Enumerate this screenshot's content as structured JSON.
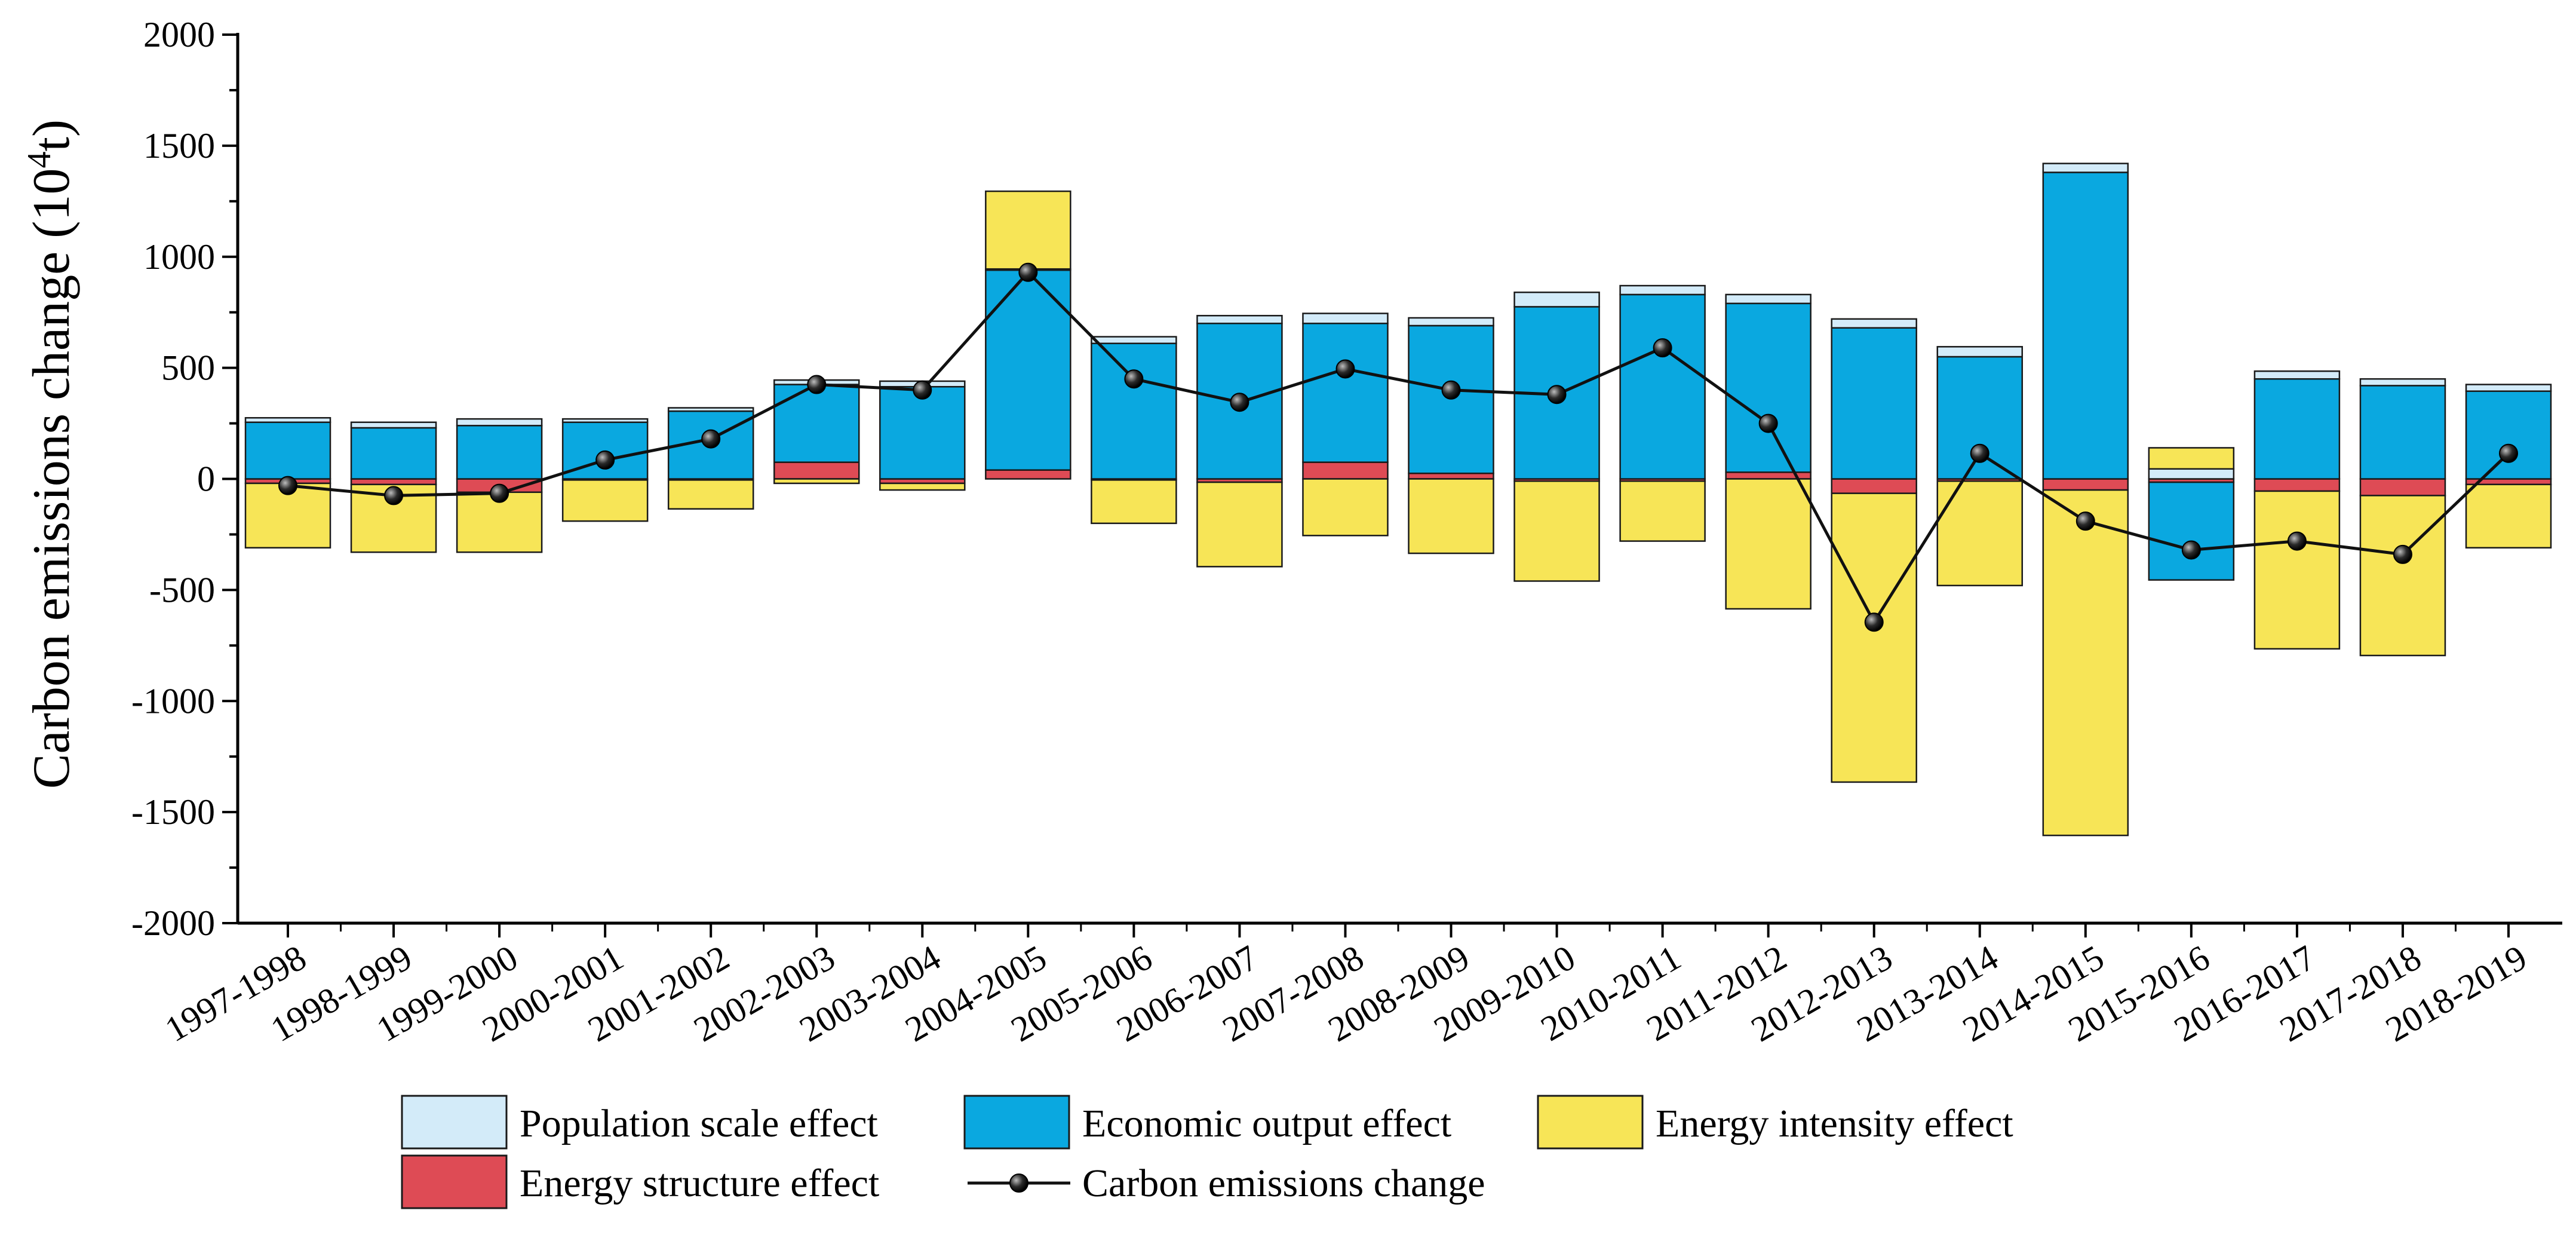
{
  "chart_data": {
    "type": "bar",
    "stacked": true,
    "categories": [
      "1997-1998",
      "1998-1999",
      "1999-2000",
      "2000-2001",
      "2001-2002",
      "2002-2003",
      "2003-2004",
      "2004-2005",
      "2005-2006",
      "2006-2007",
      "2007-2008",
      "2008-2009",
      "2009-2010",
      "2010-2011",
      "2011-2012",
      "2012-2013",
      "2013-2014",
      "2014-2015",
      "2015-2016",
      "2016-2017",
      "2017-2018",
      "2018-2019"
    ],
    "series": [
      {
        "name": "Energy structure effect",
        "color": "#de4b55",
        "values": [
          -20,
          -25,
          -60,
          -5,
          -5,
          75,
          -20,
          40,
          -5,
          -15,
          75,
          25,
          -10,
          -10,
          30,
          -65,
          -10,
          -50,
          -15,
          -55,
          -75,
          -25
        ]
      },
      {
        "name": "Economic output effect",
        "color": "#0aa8e0",
        "values": [
          255,
          230,
          240,
          255,
          305,
          350,
          415,
          900,
          610,
          700,
          625,
          665,
          775,
          830,
          760,
          680,
          550,
          1380,
          -440,
          450,
          420,
          395
        ]
      },
      {
        "name": "Population scale effect",
        "color": "#d3ebf9",
        "values": [
          20,
          25,
          30,
          15,
          15,
          20,
          25,
          5,
          30,
          35,
          45,
          35,
          65,
          40,
          40,
          40,
          45,
          40,
          45,
          35,
          30,
          30
        ]
      },
      {
        "name": "Energy intensity effect",
        "color": "#f7e557",
        "values": [
          -290,
          -305,
          -270,
          -185,
          -130,
          -20,
          -30,
          350,
          -195,
          -380,
          -255,
          -335,
          -450,
          -270,
          -585,
          -1300,
          -470,
          -1555,
          95,
          -710,
          -720,
          -285
        ]
      }
    ],
    "line_series": {
      "name": "Carbon emissions change",
      "values": [
        -30,
        -75,
        -65,
        85,
        180,
        425,
        400,
        930,
        450,
        345,
        495,
        400,
        380,
        590,
        250,
        -645,
        115,
        -190,
        -320,
        -280,
        -340,
        115
      ]
    },
    "ylabel": "Carbon emissions change (10",
    "ylabel_sup": "4",
    "ylabel_tail": "t)",
    "xlabel": "",
    "ylim": [
      -2000,
      2000
    ],
    "yticks": [
      -2000,
      -1500,
      -1000,
      -500,
      0,
      500,
      1000,
      1500,
      2000
    ],
    "ytick_labels": [
      "-2000",
      "-1500",
      "-1000",
      "-500",
      "0",
      "500",
      "1000",
      "1500",
      "2000"
    ],
    "legend": {
      "placement": "bottom",
      "entries": [
        "Population scale effect",
        "Economic output effect",
        "Energy intensity effect",
        "Energy structure effect",
        "Carbon emissions change"
      ]
    }
  }
}
